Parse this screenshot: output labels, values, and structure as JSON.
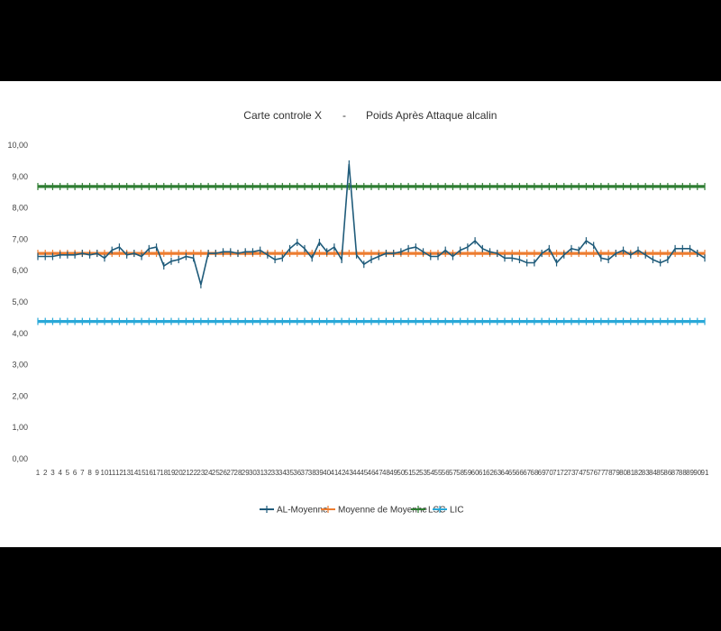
{
  "chart_data": {
    "type": "line",
    "title_left": "Carte controle X",
    "title_sep": "-",
    "title_right": "Poids Après Attaque alcalin",
    "xlabel": "",
    "ylabel": "",
    "ylim": [
      0,
      10
    ],
    "y_ticks": [
      "0,00",
      "1,00",
      "2,00",
      "3,00",
      "4,00",
      "5,00",
      "6,00",
      "7,00",
      "8,00",
      "9,00",
      "10,00"
    ],
    "x": [
      1,
      2,
      3,
      4,
      5,
      6,
      7,
      8,
      9,
      10,
      11,
      12,
      13,
      14,
      15,
      16,
      17,
      18,
      19,
      20,
      21,
      22,
      23,
      24,
      25,
      26,
      27,
      28,
      29,
      30,
      31,
      32,
      33,
      34,
      35,
      36,
      37,
      38,
      39,
      40,
      41,
      42,
      43,
      44,
      45,
      46,
      47,
      48,
      49,
      50,
      51,
      52,
      53,
      54,
      55,
      56,
      57,
      58,
      59,
      60,
      61,
      62,
      63,
      64,
      65,
      66,
      67,
      68,
      69,
      70,
      71,
      72,
      73,
      74,
      75,
      76,
      77,
      78,
      79,
      80,
      81,
      82,
      83,
      84,
      85,
      86,
      87,
      88,
      89,
      90,
      91
    ],
    "grid": false,
    "legend_position": "bottom",
    "series": [
      {
        "name": "AL-Moyenne",
        "color": "#1f5b7a",
        "marker": "dash",
        "values": [
          6.45,
          6.45,
          6.45,
          6.5,
          6.5,
          6.5,
          6.55,
          6.5,
          6.55,
          6.4,
          6.65,
          6.75,
          6.5,
          6.55,
          6.45,
          6.7,
          6.75,
          6.15,
          6.3,
          6.35,
          6.45,
          6.4,
          5.55,
          6.55,
          6.55,
          6.6,
          6.6,
          6.55,
          6.6,
          6.6,
          6.65,
          6.5,
          6.35,
          6.4,
          6.7,
          6.9,
          6.7,
          6.4,
          6.9,
          6.6,
          6.75,
          6.35,
          9.4,
          6.5,
          6.2,
          6.35,
          6.45,
          6.55,
          6.55,
          6.6,
          6.7,
          6.75,
          6.6,
          6.45,
          6.45,
          6.65,
          6.45,
          6.65,
          6.75,
          6.95,
          6.7,
          6.6,
          6.55,
          6.4,
          6.4,
          6.35,
          6.25,
          6.25,
          6.55,
          6.7,
          6.25,
          6.5,
          6.7,
          6.65,
          6.95,
          6.8,
          6.4,
          6.35,
          6.55,
          6.65,
          6.5,
          6.65,
          6.5,
          6.35,
          6.25,
          6.35,
          6.7,
          6.7,
          6.7,
          6.55,
          6.4
        ]
      },
      {
        "name": "Moyenne de Moyenne",
        "color": "#ed7d31",
        "marker": "dash",
        "constant": 6.55
      },
      {
        "name": "LSC",
        "color": "#2e7d32",
        "marker": "dash",
        "constant": 8.68
      },
      {
        "name": "LIC",
        "color": "#29a8d8",
        "marker": "dash",
        "constant": 4.38
      }
    ]
  }
}
